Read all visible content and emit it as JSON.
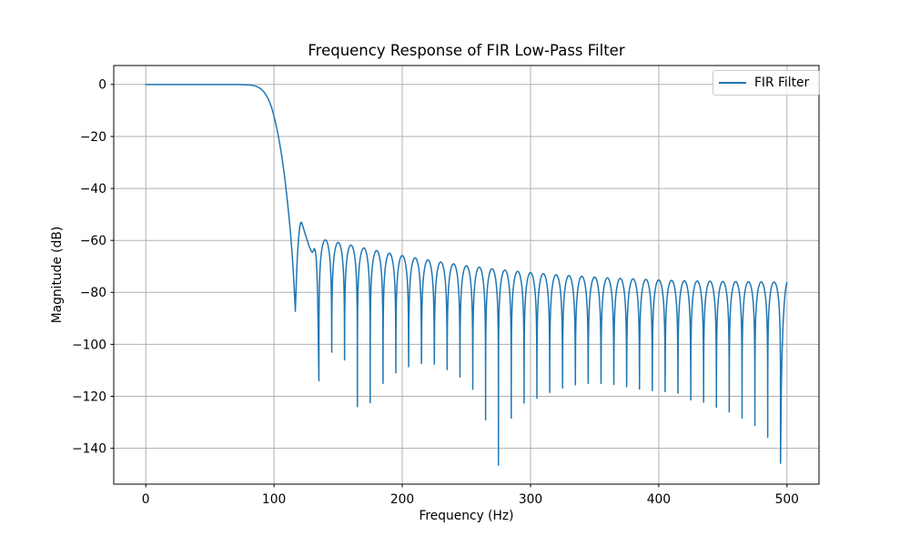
{
  "chart_data": {
    "type": "line",
    "title": "Frequency Response of FIR Low-Pass Filter",
    "xlabel": "Frequency (Hz)",
    "ylabel": "Magnitude (dB)",
    "xlim": [
      -25,
      525
    ],
    "ylim": [
      -153.8,
      7.3
    ],
    "grid": true,
    "grid_color": "#b0b0b0",
    "spine_color": "#000000",
    "background": "#ffffff",
    "text_color": "#000000",
    "x_ticks": {
      "values": [
        0,
        100,
        200,
        300,
        400,
        500
      ],
      "labels": [
        "0",
        "100",
        "200",
        "300",
        "400",
        "500"
      ]
    },
    "y_ticks": {
      "values": [
        0,
        -20,
        -40,
        -60,
        -80,
        -100,
        -120,
        -140
      ],
      "labels": [
        "0",
        "−20",
        "−40",
        "−60",
        "−80",
        "−100",
        "−120",
        "−140"
      ]
    },
    "legend": {
      "position": "upper right",
      "entries": [
        {
          "label": "FIR Filter",
          "color": "#1f77b4"
        }
      ]
    },
    "series": [
      {
        "name": "FIR Filter",
        "color": "#1f77b4",
        "linewidth": 1.5,
        "curve": {
          "passband": [
            [
              0,
              0
            ],
            [
              10,
              0
            ],
            [
              20,
              0
            ],
            [
              30,
              0
            ],
            [
              40,
              0
            ],
            [
              50,
              0
            ],
            [
              60,
              0
            ],
            [
              68,
              -0.01
            ],
            [
              74,
              -0.04
            ],
            [
              78,
              -0.1
            ],
            [
              81,
              -0.2
            ],
            [
              84,
              -0.42
            ],
            [
              86,
              -0.7
            ],
            [
              88,
              -1.15
            ],
            [
              90,
              -1.8
            ],
            [
              92,
              -2.8
            ],
            [
              94,
              -4.2
            ],
            [
              96,
              -6.1
            ],
            [
              98,
              -8.7
            ],
            [
              100,
              -12.2
            ],
            [
              102,
              -16.5
            ],
            [
              104,
              -21.5
            ],
            [
              106,
              -27.5
            ],
            [
              108,
              -34.5
            ],
            [
              110,
              -43
            ],
            [
              111.5,
              -50
            ],
            [
              113,
              -58
            ],
            [
              114.3,
              -66.5
            ],
            [
              115.3,
              -74.5
            ],
            [
              116.1,
              -82
            ],
            [
              116.6,
              -87.3
            ],
            [
              117.1,
              -80
            ],
            [
              117.7,
              -71.5
            ],
            [
              118.4,
              -64.5
            ],
            [
              119.2,
              -58.8
            ],
            [
              120,
              -55
            ],
            [
              120.7,
              -53.2
            ],
            [
              121.3,
              -53.0
            ],
            [
              122,
              -53.8
            ],
            [
              123,
              -55.4
            ],
            [
              124.5,
              -57.8
            ],
            [
              126,
              -60.2
            ],
            [
              127.5,
              -62.4
            ],
            [
              129,
              -64.2
            ],
            [
              130,
              -64.6
            ],
            [
              130.7,
              -64.0
            ],
            [
              131.5,
              -63.1
            ],
            [
              132.2,
              -64.0
            ],
            [
              132.9,
              -67
            ],
            [
              133.5,
              -73
            ],
            [
              134,
              -81
            ],
            [
              134.4,
              -93
            ],
            [
              134.7,
              -104
            ],
            [
              135,
              -114
            ]
          ],
          "nulls": [
            [
              135,
              -114
            ],
            [
              145,
              -103
            ],
            [
              155,
              -106
            ],
            [
              165,
              -124
            ],
            [
              175,
              -122.5
            ],
            [
              185,
              -115
            ],
            [
              195,
              -111
            ],
            [
              205,
              -108.6
            ],
            [
              215,
              -107.4
            ],
            [
              225,
              -107.6
            ],
            [
              235,
              -109.7
            ],
            [
              245,
              -112.6
            ],
            [
              255,
              -117.3
            ],
            [
              265,
              -129
            ],
            [
              275,
              -146.5
            ],
            [
              285,
              -128.4
            ],
            [
              295,
              -122.6
            ],
            [
              305,
              -120.7
            ],
            [
              315,
              -118.5
            ],
            [
              325,
              -116.8
            ],
            [
              335,
              -115.6
            ],
            [
              345,
              -115
            ],
            [
              355,
              -115
            ],
            [
              365,
              -115.5
            ],
            [
              375,
              -116.3
            ],
            [
              385,
              -117.2
            ],
            [
              395,
              -117.8
            ],
            [
              405,
              -118.2
            ],
            [
              415,
              -118.8
            ],
            [
              425,
              -121.4
            ],
            [
              435,
              -122.3
            ],
            [
              445,
              -124.2
            ],
            [
              455,
              -126
            ],
            [
              465,
              -128.4
            ],
            [
              475,
              -131.2
            ],
            [
              485,
              -135.7
            ],
            [
              495,
              -145.8
            ]
          ],
          "lobe_peaks": [
            -59.8,
            -60.8,
            -61.8,
            -62.9,
            -63.9,
            -64.9,
            -65.8,
            -66.7,
            -67.5,
            -68.3,
            -69,
            -69.7,
            -70.3,
            -70.9,
            -71.4,
            -71.9,
            -72.4,
            -72.8,
            -73.2,
            -73.5,
            -73.8,
            -74.1,
            -74.4,
            -74.6,
            -74.8,
            -75,
            -75.2,
            -75.35,
            -75.5,
            -75.6,
            -75.7,
            -75.8,
            -75.85,
            -75.9,
            -75.95,
            -76
          ],
          "tail": [
            [
              495.6,
              -117
            ],
            [
              496.2,
              -103
            ],
            [
              497,
              -92
            ],
            [
              497.8,
              -85
            ],
            [
              498.6,
              -80.2
            ],
            [
              499.3,
              -77.5
            ],
            [
              500,
              -76.2
            ]
          ]
        }
      }
    ]
  }
}
